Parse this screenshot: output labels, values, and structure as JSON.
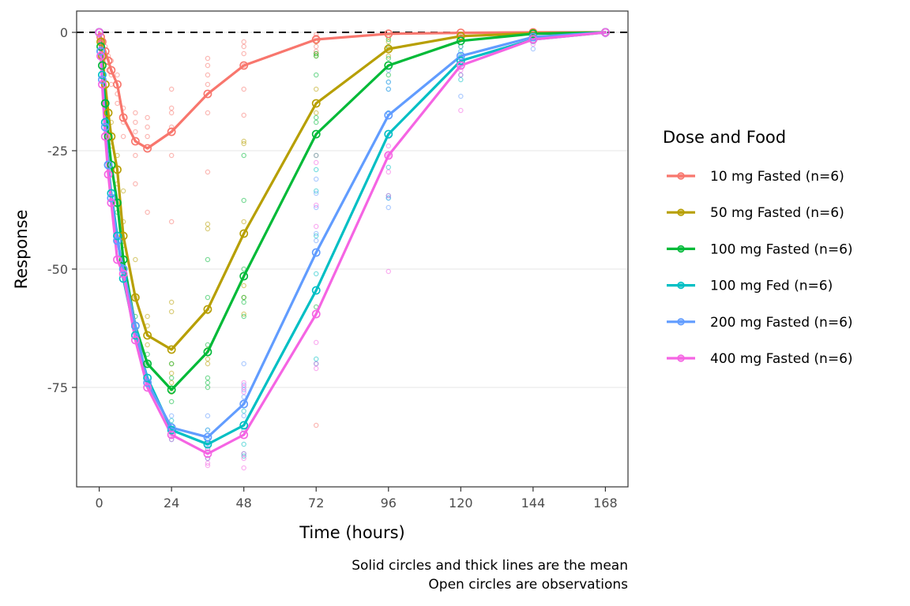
{
  "chart_data": {
    "type": "line",
    "title": "",
    "xlabel": "Time (hours)",
    "ylabel": "Response",
    "xlim": [
      -7.5,
      175.5
    ],
    "ylim": [
      -96,
      4.5
    ],
    "x_ticks": [
      0,
      24,
      48,
      72,
      96,
      120,
      144,
      168
    ],
    "y_ticks": [
      0,
      -25,
      -50,
      -75
    ],
    "y_tick_labels": [
      "0",
      "-25",
      "-50",
      "-75"
    ],
    "grid": "horizontal major",
    "reference_line": {
      "y": 0,
      "style": "dashed",
      "color": "#000000"
    },
    "legend": {
      "title": "Dose and Food",
      "placement": "right"
    },
    "caption": [
      "Solid circles and thick lines are the mean",
      "Open circles are observations"
    ],
    "x": [
      0,
      0.5,
      1,
      2,
      3,
      4,
      6,
      8,
      12,
      16,
      24,
      36,
      48,
      72,
      96,
      120,
      144,
      168
    ],
    "series": [
      {
        "name": "10 mg Fasted (n=6)",
        "color": "#F8766D",
        "values": [
          0,
          -1,
          -2,
          -4,
          -6,
          -8,
          -11,
          -18,
          -23,
          -24.5,
          -21,
          -13,
          -7,
          -1.5,
          -0.3,
          -0.1,
          0,
          0
        ],
        "observations": [
          [
            2,
            -3
          ],
          [
            2,
            -5
          ],
          [
            3,
            -5
          ],
          [
            3,
            -8
          ],
          [
            4,
            -6
          ],
          [
            4,
            -9
          ],
          [
            4,
            -11
          ],
          [
            6,
            -9
          ],
          [
            6,
            -13
          ],
          [
            6,
            -15
          ],
          [
            8,
            -16
          ],
          [
            8,
            -19
          ],
          [
            8,
            -22
          ],
          [
            12,
            -19
          ],
          [
            12,
            -21
          ],
          [
            12,
            -26
          ],
          [
            12,
            -32
          ],
          [
            12,
            -17
          ],
          [
            16,
            -18
          ],
          [
            16,
            -20
          ],
          [
            16,
            -22
          ],
          [
            16,
            -38
          ],
          [
            24,
            -12
          ],
          [
            24,
            -16
          ],
          [
            24,
            -17
          ],
          [
            24,
            -20
          ],
          [
            24,
            -26
          ],
          [
            24,
            -40
          ],
          [
            36,
            -5.5
          ],
          [
            36,
            -7
          ],
          [
            36,
            -9
          ],
          [
            36,
            -11
          ],
          [
            36,
            -17
          ],
          [
            36,
            -29.5
          ],
          [
            48,
            -2
          ],
          [
            48,
            -3
          ],
          [
            48,
            -4.5
          ],
          [
            48,
            -7
          ],
          [
            48,
            -12
          ],
          [
            48,
            -17.5
          ],
          [
            72,
            -0.5
          ],
          [
            72,
            -1
          ],
          [
            72,
            -2
          ],
          [
            72,
            -3
          ],
          [
            72,
            -4
          ],
          [
            72,
            -83
          ]
        ]
      },
      {
        "name": "50 mg Fasted (n=6)",
        "color": "#B79F00",
        "values": [
          0,
          -2,
          -5,
          -11,
          -17,
          -22,
          -29,
          -43,
          -56,
          -64,
          -67,
          -58.5,
          -42.5,
          -15,
          -3.5,
          -0.8,
          -0.2,
          0
        ],
        "observations": [
          [
            4,
            -19
          ],
          [
            4,
            -24
          ],
          [
            6,
            -26
          ],
          [
            6,
            -32
          ],
          [
            8,
            -33.5
          ],
          [
            8,
            -40
          ],
          [
            12,
            -48
          ],
          [
            12,
            -56
          ],
          [
            16,
            -60
          ],
          [
            16,
            -62
          ],
          [
            16,
            -66
          ],
          [
            24,
            -57
          ],
          [
            24,
            -59
          ],
          [
            24,
            -70
          ],
          [
            24,
            -72
          ],
          [
            24,
            -74
          ],
          [
            24,
            -76
          ],
          [
            36,
            -40.5
          ],
          [
            36,
            -41.5
          ],
          [
            36,
            -59
          ],
          [
            36,
            -69
          ],
          [
            36,
            -70
          ],
          [
            36,
            -67
          ],
          [
            48,
            -23
          ],
          [
            48,
            -23.5
          ],
          [
            48,
            -40
          ],
          [
            48,
            -53.5
          ],
          [
            48,
            -56
          ],
          [
            48,
            -59.5
          ],
          [
            72,
            -5
          ],
          [
            72,
            -12
          ],
          [
            72,
            -17
          ],
          [
            72,
            -26
          ],
          [
            72,
            -4.5
          ],
          [
            72,
            -2
          ],
          [
            96,
            -1
          ],
          [
            96,
            -2
          ],
          [
            96,
            -3.5
          ],
          [
            96,
            -5
          ],
          [
            120,
            -0.5
          ],
          [
            120,
            -1
          ]
        ]
      },
      {
        "name": "100 mg Fasted (n=6)",
        "color": "#00BA38",
        "values": [
          0,
          -3,
          -7,
          -15,
          -22,
          -28,
          -36,
          -48,
          -62,
          -70,
          -75.5,
          -67.5,
          -51.5,
          -21.5,
          -7,
          -1.8,
          -0.3,
          0
        ],
        "observations": [
          [
            6,
            -38
          ],
          [
            8,
            -45
          ],
          [
            12,
            -60
          ],
          [
            16,
            -68
          ],
          [
            16,
            -70
          ],
          [
            24,
            -73
          ],
          [
            24,
            -78
          ],
          [
            24,
            -70
          ],
          [
            36,
            -48
          ],
          [
            36,
            -56
          ],
          [
            36,
            -66
          ],
          [
            36,
            -73
          ],
          [
            36,
            -74
          ],
          [
            36,
            -75
          ],
          [
            48,
            -26
          ],
          [
            48,
            -35.5
          ],
          [
            48,
            -50
          ],
          [
            48,
            -56
          ],
          [
            48,
            -57
          ],
          [
            48,
            -60
          ],
          [
            72,
            -9
          ],
          [
            72,
            -18
          ],
          [
            72,
            -19
          ],
          [
            72,
            -4.5
          ],
          [
            72,
            -5
          ],
          [
            72,
            -58
          ],
          [
            96,
            -1.5
          ],
          [
            96,
            -3
          ],
          [
            96,
            -5.5
          ],
          [
            96,
            -9
          ],
          [
            120,
            -1
          ],
          [
            120,
            -3
          ]
        ]
      },
      {
        "name": "100 mg Fed (n=6)",
        "color": "#00BFC4",
        "values": [
          0,
          -4,
          -9,
          -19,
          -28,
          -34,
          -43,
          -52,
          -64,
          -73,
          -84,
          -87,
          -83,
          -54.5,
          -21.5,
          -6,
          -1.5,
          0
        ],
        "observations": [
          [
            24,
            -82
          ],
          [
            24,
            -83
          ],
          [
            24,
            -86
          ],
          [
            36,
            -84
          ],
          [
            36,
            -86
          ],
          [
            36,
            -88
          ],
          [
            36,
            -90
          ],
          [
            48,
            -80
          ],
          [
            48,
            -84
          ],
          [
            48,
            -87
          ],
          [
            48,
            -89
          ],
          [
            48,
            -89.5
          ],
          [
            72,
            -29
          ],
          [
            72,
            -33.5
          ],
          [
            72,
            -43
          ],
          [
            72,
            -51
          ],
          [
            72,
            -69
          ],
          [
            72,
            -70
          ],
          [
            96,
            -10.5
          ],
          [
            96,
            -17
          ],
          [
            96,
            -28.5
          ],
          [
            96,
            -34.5
          ],
          [
            96,
            -35
          ],
          [
            96,
            -12
          ],
          [
            120,
            -4
          ],
          [
            120,
            -5
          ],
          [
            120,
            -9
          ],
          [
            120,
            -10
          ],
          [
            144,
            -0.5
          ],
          [
            144,
            -2
          ]
        ]
      },
      {
        "name": "200 mg Fasted (n=6)",
        "color": "#619CFF",
        "values": [
          0,
          -4,
          -10,
          -20,
          -28,
          -35,
          -44,
          -50,
          -62,
          -74,
          -83.5,
          -85.5,
          -78.5,
          -46.5,
          -17.5,
          -5,
          -1,
          0
        ],
        "observations": [
          [
            24,
            -81
          ],
          [
            24,
            -84
          ],
          [
            36,
            -81
          ],
          [
            36,
            -84
          ],
          [
            36,
            -86
          ],
          [
            36,
            -87
          ],
          [
            48,
            -70
          ],
          [
            48,
            -74.5
          ],
          [
            48,
            -75.5
          ],
          [
            48,
            -77
          ],
          [
            48,
            -81
          ],
          [
            48,
            -78
          ],
          [
            72,
            -26
          ],
          [
            72,
            -31
          ],
          [
            72,
            -34
          ],
          [
            72,
            -37
          ],
          [
            72,
            -42.5
          ],
          [
            72,
            -44
          ],
          [
            96,
            -8
          ],
          [
            96,
            -10.5
          ],
          [
            96,
            -17
          ],
          [
            96,
            -35
          ],
          [
            96,
            -37
          ],
          [
            96,
            -12
          ],
          [
            120,
            -3
          ],
          [
            120,
            -7
          ],
          [
            120,
            -13.5
          ],
          [
            144,
            -1
          ],
          [
            144,
            -3.5
          ],
          [
            168,
            -0.5
          ]
        ]
      },
      {
        "name": "400 mg Fasted (n=6)",
        "color": "#F564E3",
        "values": [
          0,
          -5,
          -11,
          -22,
          -30,
          -36,
          -48,
          -51,
          -65,
          -75,
          -85,
          -89,
          -85,
          -59.5,
          -26,
          -7,
          -1.5,
          0
        ],
        "observations": [
          [
            24,
            -85
          ],
          [
            24,
            -86
          ],
          [
            36,
            -88
          ],
          [
            36,
            -90
          ],
          [
            36,
            -91
          ],
          [
            36,
            -91.5
          ],
          [
            48,
            -74
          ],
          [
            48,
            -75
          ],
          [
            48,
            -76
          ],
          [
            48,
            -90
          ],
          [
            48,
            -92
          ],
          [
            48,
            -89
          ],
          [
            72,
            -27.5
          ],
          [
            72,
            -36.5
          ],
          [
            72,
            -41
          ],
          [
            72,
            -65.5
          ],
          [
            72,
            -70
          ],
          [
            72,
            -71
          ],
          [
            96,
            -29.5
          ],
          [
            96,
            -34.5
          ],
          [
            96,
            -50.5
          ],
          [
            96,
            -24
          ],
          [
            96,
            -22
          ],
          [
            96,
            -26
          ],
          [
            120,
            -8
          ],
          [
            120,
            -9
          ],
          [
            120,
            -16.5
          ],
          [
            144,
            -1
          ],
          [
            144,
            -2.5
          ],
          [
            168,
            -0.5
          ]
        ]
      }
    ]
  }
}
